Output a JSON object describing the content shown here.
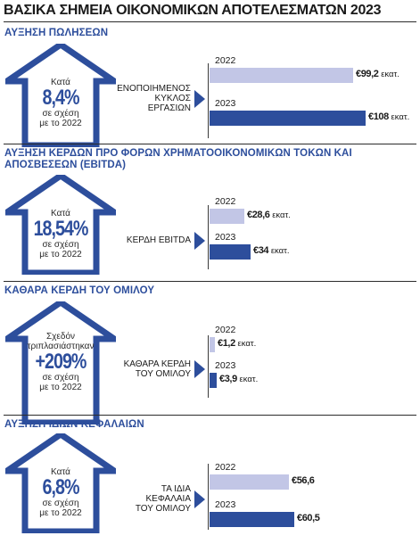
{
  "title": "ΒΑΣΙΚΑ ΣΗΜΕΙΑ ΟΙΚΟΝΟΜΙΚΩΝ ΑΠΟΤΕΛΕΣΜΑΤΩΝ 2023",
  "colors": {
    "accent": "#2d4e9c",
    "bar_2022": "#c2c6e6",
    "bar_2023": "#2d4e9c"
  },
  "sections": [
    {
      "heading": "ΑΥΞΗΣΗ ΠΩΛΗΣΕΩΝ",
      "arrow": {
        "pre": "Κατά",
        "pre2": "",
        "big": "8,4%",
        "post1": "σε σχέση",
        "post2": "με το 2022"
      },
      "metric_label": [
        "ΕΝΟΠΟΙΗΜΕΝΟΣ",
        "ΚΥΚΛΟΣ",
        "ΕΡΓΑΣΙΩΝ"
      ],
      "bars": [
        {
          "year": "2022",
          "value_text": "€99,2",
          "unit": "εκατ."
        },
        {
          "year": "2023",
          "value_text": "€108",
          "unit": "εκατ."
        }
      ]
    },
    {
      "heading": "ΑΥΞΗΣΗ ΚΕΡΔΩΝ ΠΡΟ ΦΟΡΩΝ ΧΡΗΜΑΤΟΟΙΚΟΝΟΜΙΚΩΝ ΤΟΚΩΝ ΚΑΙ ΑΠΟΣΒΕΣΕΩΝ (EBITDA)",
      "arrow": {
        "pre": "Κατά",
        "pre2": "",
        "big": "18,54%",
        "post1": "σε σχέση",
        "post2": "με το 2022"
      },
      "metric_label": [
        "ΚΕΡΔΗ EBITDA"
      ],
      "bars": [
        {
          "year": "2022",
          "value_text": "€28,6",
          "unit": "εκατ."
        },
        {
          "year": "2023",
          "value_text": "€34",
          "unit": "εκατ."
        }
      ]
    },
    {
      "heading": "ΚΑΘΑΡΑ ΚΕΡΔΗ ΤΟΥ ΟΜΙΛΟΥ",
      "arrow": {
        "pre": "Σχεδόν",
        "pre2": "τριπλασιάστηκαν",
        "big": "+209%",
        "post1": "σε σχέση",
        "post2": "με το 2022"
      },
      "metric_label": [
        "ΚΑΘΑΡΑ ΚΕΡΔΗ",
        "ΤΟΥ ΟΜΙΛΟΥ"
      ],
      "bars": [
        {
          "year": "2022",
          "value_text": "€1,2",
          "unit": "εκατ."
        },
        {
          "year": "2023",
          "value_text": "€3,9",
          "unit": "εκατ."
        }
      ]
    },
    {
      "heading": "ΑΥΞΗΣΗ ΙΔΙΩΝ ΚΕΦΑΛΑΙΩΝ",
      "arrow": {
        "pre": "Κατά",
        "pre2": "",
        "big": "6,8%",
        "post1": "σε σχέση",
        "post2": "με το 2022"
      },
      "metric_label": [
        "ΤΑ ΙΔΙΑ",
        "ΚΕΦΑΛΑΙΑ",
        "ΤΟΥ ΟΜΙΛΟΥ"
      ],
      "bars": [
        {
          "year": "2022",
          "value_text": "€56,6",
          "unit": ""
        },
        {
          "year": "2023",
          "value_text": "€60,5",
          "unit": ""
        }
      ]
    }
  ],
  "chart_data": [
    {
      "type": "bar",
      "title": "ΑΥΞΗΣΗ ΠΩΛΗΣΕΩΝ",
      "categories": [
        "2022",
        "2023"
      ],
      "values": [
        99.2,
        108
      ],
      "unit": "εκατ. €"
    },
    {
      "type": "bar",
      "title": "ΑΥΞΗΣΗ ΚΕΡΔΩΝ ΠΡΟ ΦΟΡΩΝ ΧΡΗΜΑΤΟΟΙΚΟΝΟΜΙΚΩΝ ΤΟΚΩΝ ΚΑΙ ΑΠΟΣΒΕΣΕΩΝ (EBITDA)",
      "categories": [
        "2022",
        "2023"
      ],
      "values": [
        28.6,
        34
      ],
      "unit": "εκατ. €"
    },
    {
      "type": "bar",
      "title": "ΚΑΘΑΡΑ ΚΕΡΔΗ ΤΟΥ ΟΜΙΛΟΥ",
      "categories": [
        "2022",
        "2023"
      ],
      "values": [
        1.2,
        3.9
      ],
      "unit": "εκατ. €"
    },
    {
      "type": "bar",
      "title": "ΑΥΞΗΣΗ ΙΔΙΩΝ ΚΕΦΑΛΑΙΩΝ",
      "categories": [
        "2022",
        "2023"
      ],
      "values": [
        56.6,
        60.5
      ],
      "unit": "εκατ. €"
    }
  ]
}
